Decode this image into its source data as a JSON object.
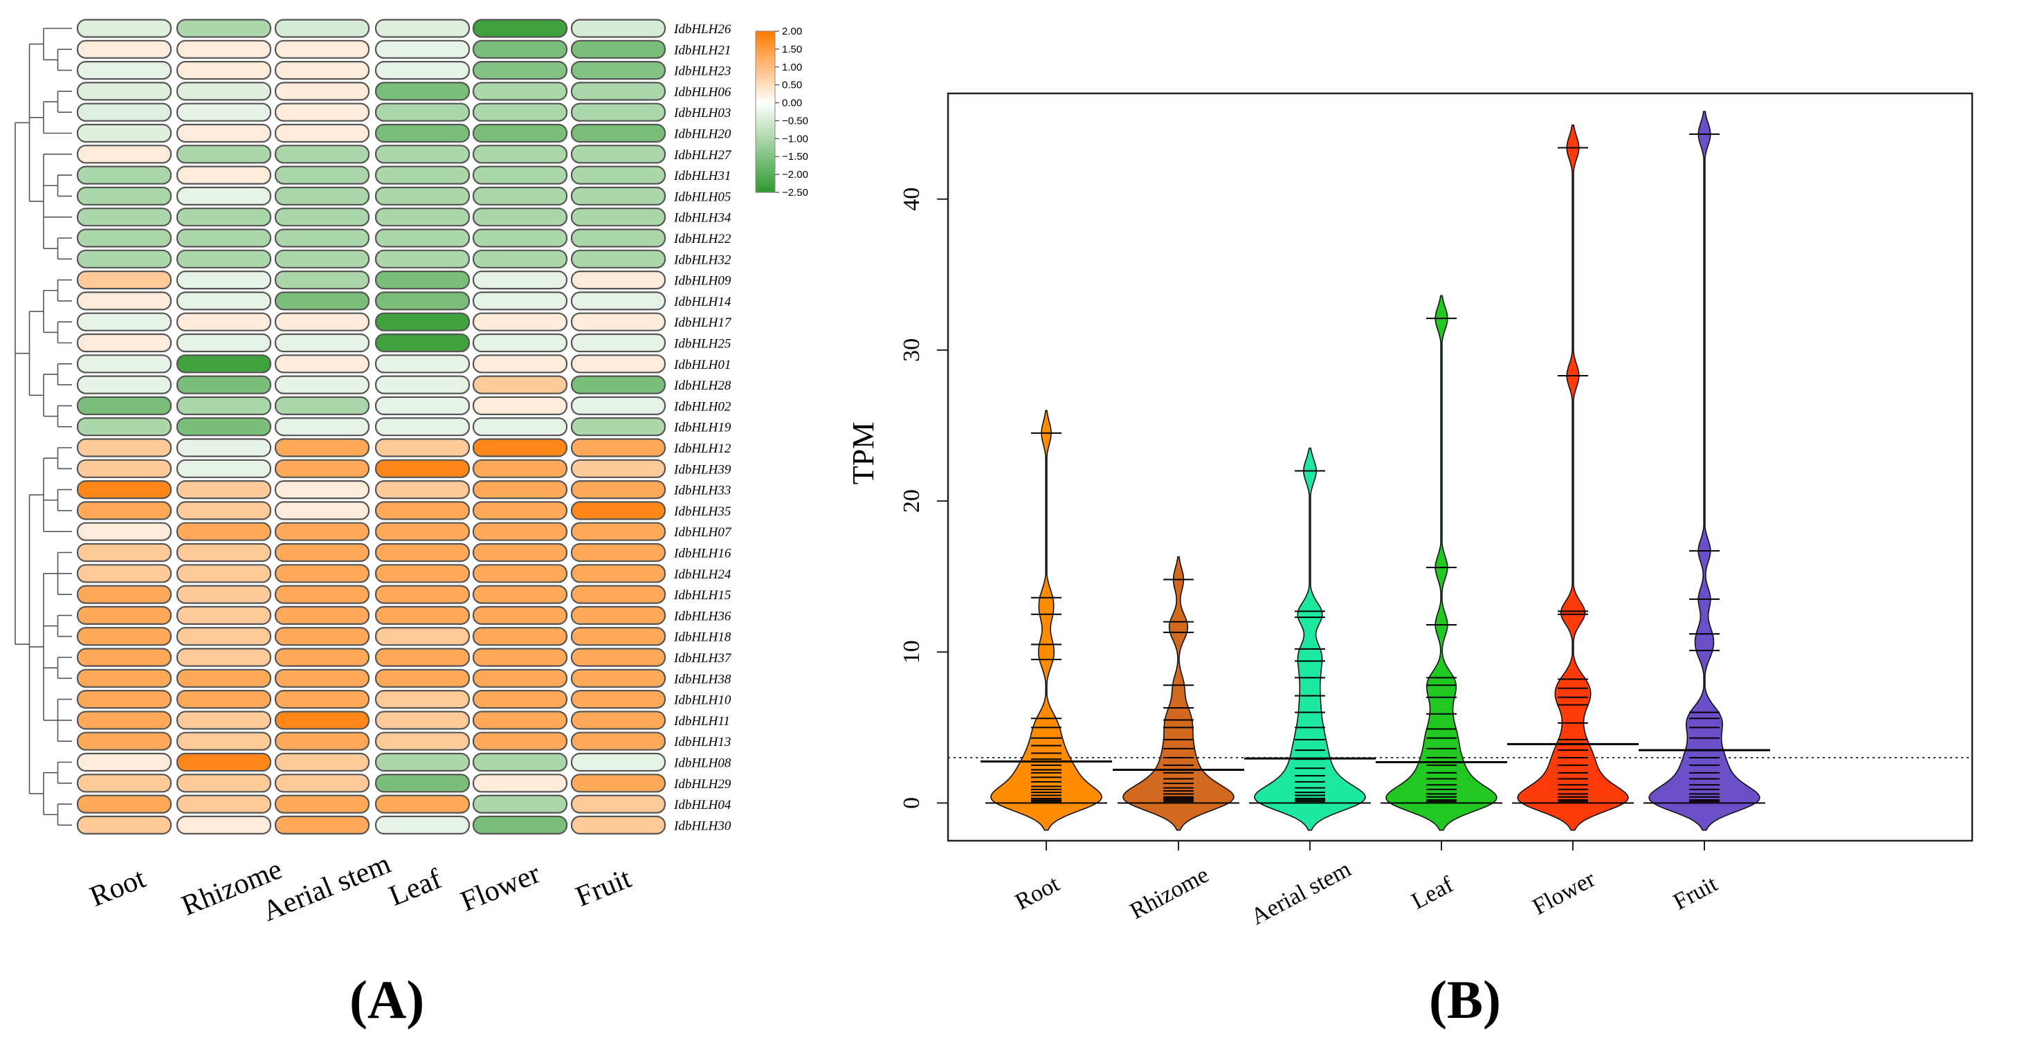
{
  "chart_data": [
    {
      "type": "heatmap",
      "panel_label": "(A)",
      "columns": [
        "Root",
        "Rhizome",
        "Aerial stem",
        "Leaf",
        "Flower",
        "Fruit"
      ],
      "rows": [
        "IdbHLH26",
        "IdbHLH21",
        "IdbHLH23",
        "IdbHLH06",
        "IdbHLH03",
        "IdbHLH20",
        "IdbHLH27",
        "IdbHLH31",
        "IdbHLH05",
        "IdbHLH34",
        "IdbHLH22",
        "IdbHLH32",
        "IdbHLH09",
        "IdbHLH14",
        "IdbHLH17",
        "IdbHLH25",
        "IdbHLH01",
        "IdbHLH28",
        "IdbHLH02",
        "IdbHLH19",
        "IdbHLH12",
        "IdbHLH39",
        "IdbHLH33",
        "IdbHLH35",
        "IdbHLH07",
        "IdbHLH16",
        "IdbHLH24",
        "IdbHLH15",
        "IdbHLH36",
        "IdbHLH18",
        "IdbHLH37",
        "IdbHLH38",
        "IdbHLH10",
        "IdbHLH11",
        "IdbHLH13",
        "IdbHLH08",
        "IdbHLH29",
        "IdbHLH04",
        "IdbHLH30"
      ],
      "values": [
        [
          -0.4,
          -1.0,
          -0.5,
          -0.4,
          -2.3,
          -0.5
        ],
        [
          0.3,
          0.3,
          0.3,
          -0.3,
          -1.6,
          -1.6
        ],
        [
          -0.3,
          0.3,
          0.3,
          -0.3,
          -1.5,
          -1.5
        ],
        [
          -0.4,
          -0.4,
          0.3,
          -1.6,
          -1.0,
          -1.0
        ],
        [
          -0.4,
          -0.3,
          0.3,
          -1.0,
          -1.0,
          -1.0
        ],
        [
          -0.4,
          0.3,
          0.3,
          -1.6,
          -1.6,
          -1.6
        ],
        [
          0.3,
          -1.0,
          -1.0,
          -1.0,
          -1.0,
          -1.0
        ],
        [
          -1.0,
          0.3,
          -1.0,
          -1.0,
          -1.0,
          -1.0
        ],
        [
          -1.0,
          -0.3,
          -1.0,
          -1.0,
          -1.0,
          -1.0
        ],
        [
          -1.0,
          -1.0,
          -1.0,
          -1.0,
          -1.0,
          -1.0
        ],
        [
          -1.0,
          -1.0,
          -1.0,
          -1.0,
          -1.0,
          -1.0
        ],
        [
          -1.0,
          -1.0,
          -1.0,
          -1.0,
          -1.0,
          -1.0
        ],
        [
          0.8,
          -0.3,
          -1.0,
          -1.6,
          -0.3,
          0.3
        ],
        [
          0.3,
          -0.3,
          -1.6,
          -1.6,
          -0.3,
          -0.3
        ],
        [
          -0.3,
          0.3,
          0.3,
          -2.3,
          0.3,
          0.3
        ],
        [
          0.3,
          -0.3,
          -0.3,
          -2.3,
          -0.3,
          -0.3
        ],
        [
          -0.3,
          -2.3,
          0.3,
          -0.3,
          0.3,
          0.3
        ],
        [
          -0.3,
          -1.6,
          -0.3,
          -0.3,
          0.8,
          -1.6
        ],
        [
          -1.6,
          -1.0,
          -1.0,
          -0.3,
          0.3,
          -0.3
        ],
        [
          -1.0,
          -1.6,
          -0.3,
          -0.3,
          -0.3,
          -1.0
        ],
        [
          0.8,
          -0.3,
          1.3,
          0.8,
          1.8,
          1.3
        ],
        [
          0.8,
          -0.3,
          1.3,
          1.8,
          1.3,
          0.8
        ],
        [
          1.8,
          0.8,
          0.3,
          0.8,
          1.3,
          1.3
        ],
        [
          1.3,
          0.8,
          0.3,
          1.3,
          1.3,
          1.8
        ],
        [
          0.3,
          1.3,
          1.3,
          1.3,
          1.3,
          1.3
        ],
        [
          0.8,
          0.8,
          1.3,
          1.3,
          1.3,
          1.3
        ],
        [
          0.8,
          0.8,
          1.3,
          1.3,
          1.3,
          1.3
        ],
        [
          1.3,
          0.8,
          1.3,
          1.3,
          1.3,
          1.3
        ],
        [
          1.3,
          0.8,
          1.3,
          1.3,
          1.3,
          1.3
        ],
        [
          1.3,
          0.8,
          1.3,
          0.8,
          1.3,
          1.3
        ],
        [
          1.3,
          0.8,
          1.3,
          1.3,
          1.3,
          1.3
        ],
        [
          1.3,
          1.3,
          1.3,
          1.3,
          1.3,
          1.3
        ],
        [
          1.3,
          1.3,
          1.3,
          0.8,
          1.3,
          1.3
        ],
        [
          1.3,
          0.8,
          1.8,
          0.8,
          1.3,
          1.3
        ],
        [
          1.3,
          0.8,
          1.3,
          0.8,
          1.3,
          1.3
        ],
        [
          0.3,
          1.8,
          0.8,
          -1.0,
          -1.0,
          -0.3
        ],
        [
          0.8,
          0.8,
          0.8,
          -1.6,
          0.3,
          1.3
        ],
        [
          1.3,
          0.8,
          1.3,
          1.3,
          -1.0,
          0.8
        ],
        [
          0.8,
          0.3,
          1.3,
          -0.3,
          -1.6,
          0.8
        ]
      ],
      "legend_ticks": [
        "2.00",
        "1.50",
        "1.00",
        "0.50",
        "0.00",
        "−0.50",
        "−1.00",
        "−1.50",
        "−2.00",
        "−2.50"
      ],
      "legend_range": [
        -2.5,
        2.0
      ],
      "color_high": "#ff7a00",
      "color_mid": "#ffffff",
      "color_low": "#2e9a2e"
    },
    {
      "type": "violin",
      "panel_label": "(B)",
      "ylabel": "TPM",
      "ylim": [
        -2.5,
        47
      ],
      "yticks": [
        0,
        10,
        20,
        30,
        40
      ],
      "reference_line": 3.0,
      "categories": [
        "Root",
        "Rhizome",
        "Aerial stem",
        "Leaf",
        "Flower",
        "Fruit"
      ],
      "colors": [
        "#ff8c00",
        "#d2691e",
        "#1ee8a0",
        "#22c822",
        "#ff3b0a",
        "#6a4fc8"
      ],
      "means": [
        2.75,
        2.2,
        2.95,
        2.7,
        3.9,
        3.5
      ],
      "max_values": [
        24.5,
        14.8,
        22.0,
        32.1,
        43.4,
        44.3
      ],
      "values": [
        [
          0,
          0,
          0,
          0,
          0.1,
          0.1,
          0.2,
          0.3,
          0.5,
          0.7,
          0.9,
          1.1,
          1.4,
          1.7,
          2.0,
          2.2,
          2.5,
          2.9,
          3.3,
          3.8,
          4.3,
          5.0,
          5.6,
          9.5,
          10.5,
          12.5,
          13.6,
          24.5
        ],
        [
          0,
          0,
          0,
          0,
          0.1,
          0.2,
          0.3,
          0.4,
          0.6,
          0.8,
          1.0,
          1.3,
          1.6,
          2.0,
          2.5,
          3.0,
          3.6,
          4.2,
          5.0,
          5.5,
          6.3,
          7.8,
          11.3,
          12.0,
          14.8
        ],
        [
          0,
          0,
          0,
          0.1,
          0.2,
          0.3,
          0.5,
          0.7,
          1.0,
          1.4,
          1.8,
          2.3,
          2.9,
          3.5,
          4.2,
          5.0,
          6.0,
          7.1,
          8.3,
          9.4,
          10.2,
          12.3,
          12.7,
          22.0
        ],
        [
          0,
          0,
          0,
          0,
          0.1,
          0.2,
          0.4,
          0.6,
          0.9,
          1.2,
          1.6,
          2.0,
          2.5,
          3.0,
          3.6,
          4.3,
          4.9,
          5.9,
          7.0,
          7.8,
          8.3,
          11.8,
          15.6,
          32.1
        ],
        [
          0,
          0,
          0,
          0,
          0.1,
          0.2,
          0.4,
          0.6,
          0.9,
          1.2,
          1.6,
          2.0,
          2.5,
          3.0,
          3.5,
          4.2,
          5.3,
          6.5,
          7.0,
          7.6,
          8.2,
          12.5,
          12.7,
          28.3,
          43.4
        ],
        [
          0,
          0,
          0,
          0,
          0.1,
          0.2,
          0.4,
          0.6,
          0.9,
          1.2,
          1.6,
          2.0,
          2.5,
          3.0,
          3.5,
          4.3,
          5.0,
          5.6,
          6.0,
          10.1,
          11.2,
          13.5,
          16.7,
          44.3
        ]
      ]
    }
  ]
}
